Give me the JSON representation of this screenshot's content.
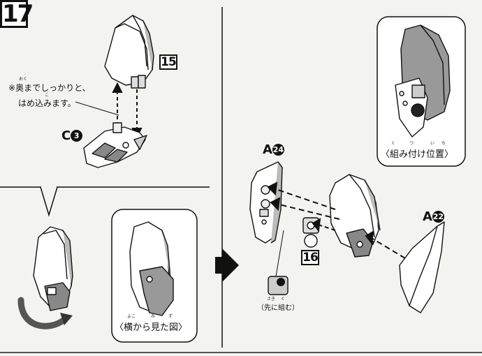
{
  "step": {
    "number": "17"
  },
  "part_refs": {
    "top_part": "15",
    "bottom_part": "16"
  },
  "note": {
    "mark": "※",
    "line1": "奥までしっかりと、",
    "line2": "はめ込みます。",
    "furigana_oku": "おく",
    "furigana_komi": "こ"
  },
  "parts": {
    "c3": {
      "letter": "C",
      "num": "3"
    },
    "a24": {
      "letter": "A",
      "num": "24"
    },
    "a22": {
      "letter": "A",
      "num": "22"
    }
  },
  "captions": {
    "side_view": "〈横から見た図〉",
    "side_view_furigana": [
      "よこ",
      "み",
      "ず"
    ],
    "position": "〈組み付け位置〉",
    "position_furigana": [
      "く",
      "つ",
      "い",
      "ち"
    ],
    "assemble_first": "（先に組む）",
    "assemble_first_furigana": [
      "さき",
      "く"
    ]
  },
  "colors": {
    "ink": "#111111",
    "shade": "#9a9a9a",
    "paper": "#f3f3f1"
  }
}
